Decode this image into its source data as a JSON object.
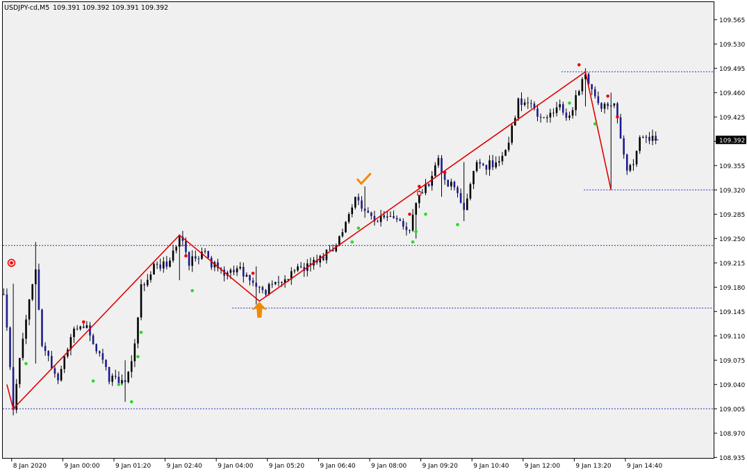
{
  "window": {
    "title": "USDJPY-cd,M5",
    "ohlc_readout": "109.391 109.392 109.391 109.392"
  },
  "colors": {
    "background": "#ffffff",
    "plot_bg": "#f0f0f0",
    "frame": "#000000",
    "bull_body": "#000000",
    "bear_body": "#1b1b8f",
    "wick": "#000000",
    "zigzag": "#e00000",
    "level_line": "#2030b0",
    "dot_high": "#ee0000",
    "dot_low": "#22dd22",
    "arrow": "#f08a00",
    "current_price_bg": "#000000",
    "current_price_fg": "#ffffff"
  },
  "chart_data": {
    "type": "candlestick",
    "symbol": "USDJPY-cd",
    "timeframe": "M5",
    "current_price": "109.392",
    "ylim": [
      108.915,
      109.585
    ],
    "y_ticks": [
      "109.565",
      "109.530",
      "109.495",
      "109.460",
      "109.425",
      "109.390",
      "109.355",
      "109.320",
      "109.285",
      "109.250",
      "109.215",
      "109.180",
      "109.145",
      "109.110",
      "109.075",
      "109.040",
      "109.005",
      "108.970",
      "108.935"
    ],
    "x_ticks": [
      {
        "label": "8 Jan 2020",
        "i": 3
      },
      {
        "label": "9 Jan 00:00",
        "i": 19
      },
      {
        "label": "9 Jan 01:20",
        "i": 35
      },
      {
        "label": "9 Jan 02:40",
        "i": 51
      },
      {
        "label": "9 Jan 04:00",
        "i": 67
      },
      {
        "label": "9 Jan 05:20",
        "i": 83
      },
      {
        "label": "9 Jan 06:40",
        "i": 99
      },
      {
        "label": "9 Jan 08:00",
        "i": 115
      },
      {
        "label": "9 Jan 09:20",
        "i": 131
      },
      {
        "label": "9 Jan 10:40",
        "i": 147
      },
      {
        "label": "9 Jan 12:00",
        "i": 163
      },
      {
        "label": "9 Jan 13:20",
        "i": 179
      },
      {
        "label": "9 Jan 14:40",
        "i": 195
      }
    ],
    "anchors": [
      [
        0,
        109.17
      ],
      [
        3,
        109.005
      ],
      [
        7,
        109.14
      ],
      [
        10,
        109.2
      ],
      [
        12,
        109.1
      ],
      [
        17,
        109.05
      ],
      [
        22,
        109.125
      ],
      [
        26,
        109.12
      ],
      [
        33,
        109.05
      ],
      [
        38,
        109.04
      ],
      [
        41,
        109.1
      ],
      [
        43,
        109.18
      ],
      [
        46,
        109.205
      ],
      [
        51,
        109.215
      ],
      [
        55,
        109.255
      ],
      [
        58,
        109.215
      ],
      [
        62,
        109.23
      ],
      [
        66,
        109.21
      ],
      [
        70,
        109.2
      ],
      [
        74,
        109.205
      ],
      [
        78,
        109.19
      ],
      [
        82,
        109.175
      ],
      [
        85,
        109.19
      ],
      [
        88,
        109.19
      ],
      [
        92,
        109.205
      ],
      [
        96,
        109.215
      ],
      [
        100,
        109.225
      ],
      [
        104,
        109.235
      ],
      [
        107,
        109.275
      ],
      [
        110,
        109.305
      ],
      [
        113,
        109.29
      ],
      [
        116,
        109.275
      ],
      [
        120,
        109.285
      ],
      [
        124,
        109.275
      ],
      [
        127,
        109.265
      ],
      [
        130,
        109.31
      ],
      [
        133,
        109.33
      ],
      [
        136,
        109.36
      ],
      [
        139,
        109.33
      ],
      [
        141,
        109.325
      ],
      [
        144,
        109.285
      ],
      [
        146,
        109.325
      ],
      [
        148,
        109.36
      ],
      [
        151,
        109.355
      ],
      [
        154,
        109.36
      ],
      [
        157,
        109.375
      ],
      [
        159,
        109.41
      ],
      [
        161,
        109.445
      ],
      [
        164,
        109.445
      ],
      [
        167,
        109.425
      ],
      [
        170,
        109.43
      ],
      [
        174,
        109.44
      ],
      [
        177,
        109.425
      ],
      [
        180,
        109.465
      ],
      [
        182,
        109.49
      ],
      [
        184,
        109.46
      ],
      [
        187,
        109.44
      ],
      [
        189,
        109.435
      ],
      [
        191,
        109.445
      ],
      [
        193,
        109.39
      ],
      [
        195,
        109.345
      ],
      [
        197,
        109.36
      ],
      [
        199,
        109.39
      ],
      [
        201,
        109.4
      ],
      [
        203,
        109.395
      ],
      [
        204,
        109.392
      ]
    ],
    "extremes": [
      {
        "i": 3,
        "h": 109.185,
        "l": 109.005
      },
      {
        "i": 10,
        "h": 109.245,
        "l": 109.07
      },
      {
        "i": 38,
        "h": 109.075,
        "l": 109.015
      },
      {
        "i": 55,
        "h": 109.255,
        "l": 109.19
      },
      {
        "i": 79,
        "h": 109.21,
        "l": 109.155
      },
      {
        "i": 113,
        "h": 109.325,
        "l": 109.28
      },
      {
        "i": 129,
        "h": 109.295,
        "l": 109.25
      },
      {
        "i": 137,
        "h": 109.37,
        "l": 109.31
      },
      {
        "i": 144,
        "h": 109.36,
        "l": 109.275
      },
      {
        "i": 182,
        "h": 109.495,
        "l": 109.44
      },
      {
        "i": 190,
        "h": 109.46,
        "l": 109.32
      }
    ],
    "zigzag": [
      [
        1,
        109.04
      ],
      [
        3,
        109.005
      ],
      [
        55,
        109.255
      ],
      [
        80,
        109.16
      ],
      [
        182,
        109.49
      ],
      [
        190,
        109.32
      ]
    ],
    "levels": [
      {
        "price": 109.005,
        "from_i": 0,
        "to_i": 237
      },
      {
        "price": 109.24,
        "from_i": 0,
        "to_i": 234
      },
      {
        "price": 109.15,
        "from_i": 72,
        "to_i": 232
      },
      {
        "price": 109.32,
        "from_i": 182,
        "to_i": 225
      },
      {
        "price": 109.49,
        "from_i": 175,
        "to_i": 230
      }
    ],
    "dots_high": [
      [
        25,
        109.13
      ],
      [
        57,
        109.225
      ],
      [
        78,
        109.2
      ],
      [
        127,
        109.285
      ],
      [
        130,
        109.325
      ],
      [
        138,
        109.345
      ],
      [
        180,
        109.5
      ],
      [
        189,
        109.455
      ],
      [
        192,
        109.425
      ]
    ],
    "dots_low": [
      [
        7,
        109.07
      ],
      [
        28,
        109.045
      ],
      [
        36,
        109.04
      ],
      [
        40,
        109.015
      ],
      [
        42,
        109.08
      ],
      [
        43,
        109.115
      ],
      [
        59,
        109.175
      ],
      [
        109,
        109.245
      ],
      [
        111,
        109.265
      ],
      [
        128,
        109.245
      ],
      [
        129,
        109.26
      ],
      [
        132,
        109.285
      ],
      [
        142,
        109.27
      ],
      [
        177,
        109.445
      ],
      [
        185,
        109.415
      ]
    ],
    "marker_circle": [
      2,
      109.215
    ],
    "marker_square": [
      130,
      109.315
    ],
    "arrow_up": [
      80,
      109.145
    ],
    "checkmark": [
      113,
      109.325
    ]
  }
}
